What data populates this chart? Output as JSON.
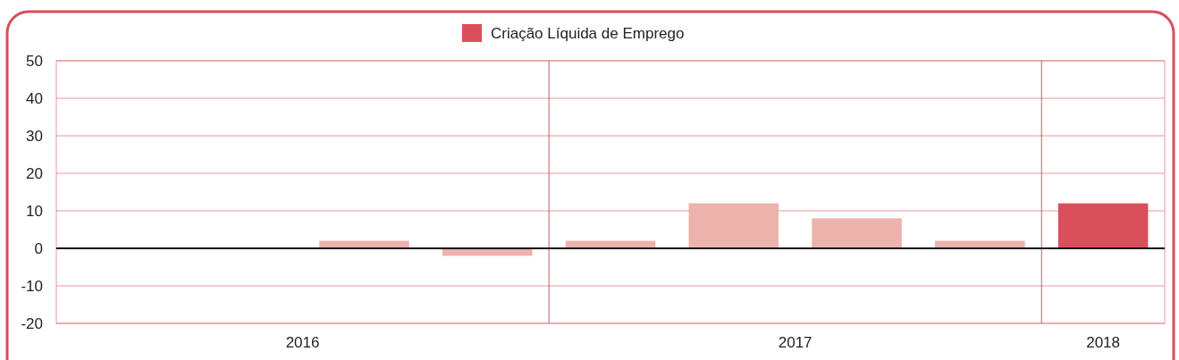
{
  "chart_data": {
    "type": "bar",
    "x": [
      2016.625,
      2016.875,
      2017.125,
      2017.375,
      2017.625,
      2017.875,
      2018.125
    ],
    "xlim": [
      2016,
      2018.25
    ],
    "xticks": [
      {
        "value": 2016.5,
        "label": "2016"
      },
      {
        "value": 2017.5,
        "label": "2017"
      },
      {
        "value": 2018.125,
        "label": "2018"
      }
    ],
    "series": [
      {
        "name": "Criação Líquida de Emprego",
        "color": "#d94f5c",
        "values": [
          2,
          -2,
          2,
          12,
          8,
          2,
          12
        ],
        "colors": [
          "#ecb3ad",
          "#ecb3ad",
          "#ecb3ad",
          "#ecb3ad",
          "#ecb3ad",
          "#ecb3ad",
          "#d94f5c"
        ]
      }
    ],
    "ylim": [
      -20,
      50
    ],
    "yticks": [
      -20,
      -10,
      0,
      10,
      20,
      30,
      40,
      50
    ],
    "grid": "y",
    "legend": "top",
    "ref_lines": [
      {
        "axis": "x",
        "value": 2017,
        "color": "#c0303f"
      },
      {
        "axis": "x",
        "value": 2018,
        "color": "#c0303f"
      }
    ]
  }
}
